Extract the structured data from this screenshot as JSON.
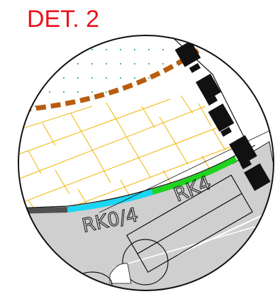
{
  "title": "DET. 2",
  "labels": {
    "rk04": "RK0/4",
    "rk4": "RK4"
  },
  "colors": {
    "title": "#e8141b",
    "dashed_line": "#b85c0e",
    "brick": "#f1b400",
    "dots": "#1e9a6a",
    "road_fill": "#cfcfcf",
    "segment_dark": "#505050",
    "segment_cyan": "#18d6f4",
    "segment_green": "#1ed41e",
    "outline": "#111111"
  }
}
